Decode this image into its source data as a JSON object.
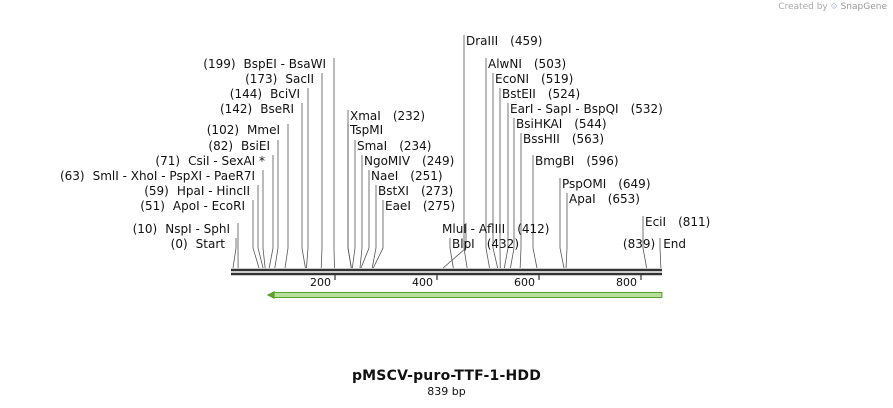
{
  "credit": {
    "created_by": "Created by",
    "brand": "SnapGene"
  },
  "plasmid": {
    "name": "pMSCV-puro-TTF-1-HDD",
    "length_label": "839 bp",
    "length_bp": 839
  },
  "axis": {
    "ticks": [
      "200",
      "400",
      "600",
      "800"
    ],
    "tick_values": [
      200,
      400,
      600,
      800
    ]
  },
  "feature": {
    "start_bp": 70,
    "end_bp": 839,
    "direction": "reverse",
    "color": "#7ec850"
  },
  "colors": {
    "line": "#333333",
    "feature_fill": "#b8e09a",
    "feature_stroke": "#5aa02c"
  },
  "labels": [
    {
      "pos": "(0)",
      "names": [
        "Start"
      ],
      "italic": true,
      "bp": 0,
      "side": "left"
    },
    {
      "pos": "(10)",
      "names": [
        "NspI",
        "SphI"
      ],
      "bp": 10,
      "side": "left"
    },
    {
      "pos": "(51)",
      "names": [
        "ApoI",
        "EcoRI"
      ],
      "bp": 51,
      "side": "left"
    },
    {
      "pos": "(59)",
      "names": [
        "HpaI",
        "HincII"
      ],
      "bp": 59,
      "side": "left"
    },
    {
      "pos": "(63)",
      "names": [
        "SmlI",
        "XhoI",
        "PspXI",
        "PaeR7I"
      ],
      "bp": 63,
      "side": "left"
    },
    {
      "pos": "(71)",
      "names": [
        "CsiI",
        "SexAI *"
      ],
      "bp": 71,
      "side": "left"
    },
    {
      "pos": "(82)",
      "names": [
        "BsiEI"
      ],
      "bp": 82,
      "side": "left"
    },
    {
      "pos": "(102)",
      "names": [
        "MmeI"
      ],
      "bp": 102,
      "side": "left"
    },
    {
      "pos": "(142)",
      "names": [
        "BseRI"
      ],
      "bp": 142,
      "side": "left"
    },
    {
      "pos": "(144)",
      "names": [
        "BciVI"
      ],
      "bp": 144,
      "side": "left"
    },
    {
      "pos": "(173)",
      "names": [
        "SacII"
      ],
      "bp": 173,
      "side": "left"
    },
    {
      "pos": "(199)",
      "names": [
        "BspEI",
        "BsaWI"
      ],
      "bp": 199,
      "side": "left"
    },
    {
      "pos": "(232)",
      "names": [
        "XmaI"
      ],
      "bp": 232,
      "side": "right"
    },
    {
      "pos": "",
      "names": [
        "TspMI"
      ],
      "bp": 232,
      "side": "right"
    },
    {
      "pos": "(234)",
      "names": [
        "SmaI"
      ],
      "bp": 234,
      "side": "right"
    },
    {
      "pos": "(249)",
      "names": [
        "NgoMIV"
      ],
      "bp": 249,
      "side": "right"
    },
    {
      "pos": "(251)",
      "names": [
        "NaeI"
      ],
      "bp": 251,
      "side": "right"
    },
    {
      "pos": "(273)",
      "names": [
        "BstXI"
      ],
      "bp": 273,
      "side": "right"
    },
    {
      "pos": "(275)",
      "names": [
        "EaeI"
      ],
      "bp": 275,
      "side": "right"
    },
    {
      "pos": "(412)",
      "names": [
        "MluI",
        "AflIII"
      ],
      "bp": 412,
      "side": "split"
    },
    {
      "pos": "(432)",
      "names": [
        "BlpI"
      ],
      "bp": 432,
      "side": "right"
    },
    {
      "pos": "(459)",
      "names": [
        "DraIII"
      ],
      "bp": 459,
      "side": "right"
    },
    {
      "pos": "(503)",
      "names": [
        "AlwNI"
      ],
      "bp": 503,
      "side": "right"
    },
    {
      "pos": "(519)",
      "names": [
        "EcoNI"
      ],
      "bp": 519,
      "side": "right"
    },
    {
      "pos": "(524)",
      "names": [
        "BstEII"
      ],
      "bp": 524,
      "side": "right"
    },
    {
      "pos": "(532)",
      "names": [
        "EarI",
        "SapI",
        "BspQI"
      ],
      "bp": 532,
      "side": "right"
    },
    {
      "pos": "(544)",
      "names": [
        "BsiHKAI"
      ],
      "bp": 544,
      "side": "right"
    },
    {
      "pos": "(563)",
      "names": [
        "BssHII"
      ],
      "bp": 563,
      "side": "right"
    },
    {
      "pos": "(596)",
      "names": [
        "BmgBI"
      ],
      "bp": 596,
      "side": "right"
    },
    {
      "pos": "(649)",
      "names": [
        "PspOMI"
      ],
      "bp": 649,
      "side": "right"
    },
    {
      "pos": "(653)",
      "names": [
        "ApaI"
      ],
      "bp": 653,
      "side": "right"
    },
    {
      "pos": "(811)",
      "names": [
        "EciI"
      ],
      "bp": 811,
      "side": "right"
    },
    {
      "pos": "(839)",
      "names": [
        "End"
      ],
      "italic": true,
      "bp": 839,
      "side": "left"
    }
  ]
}
